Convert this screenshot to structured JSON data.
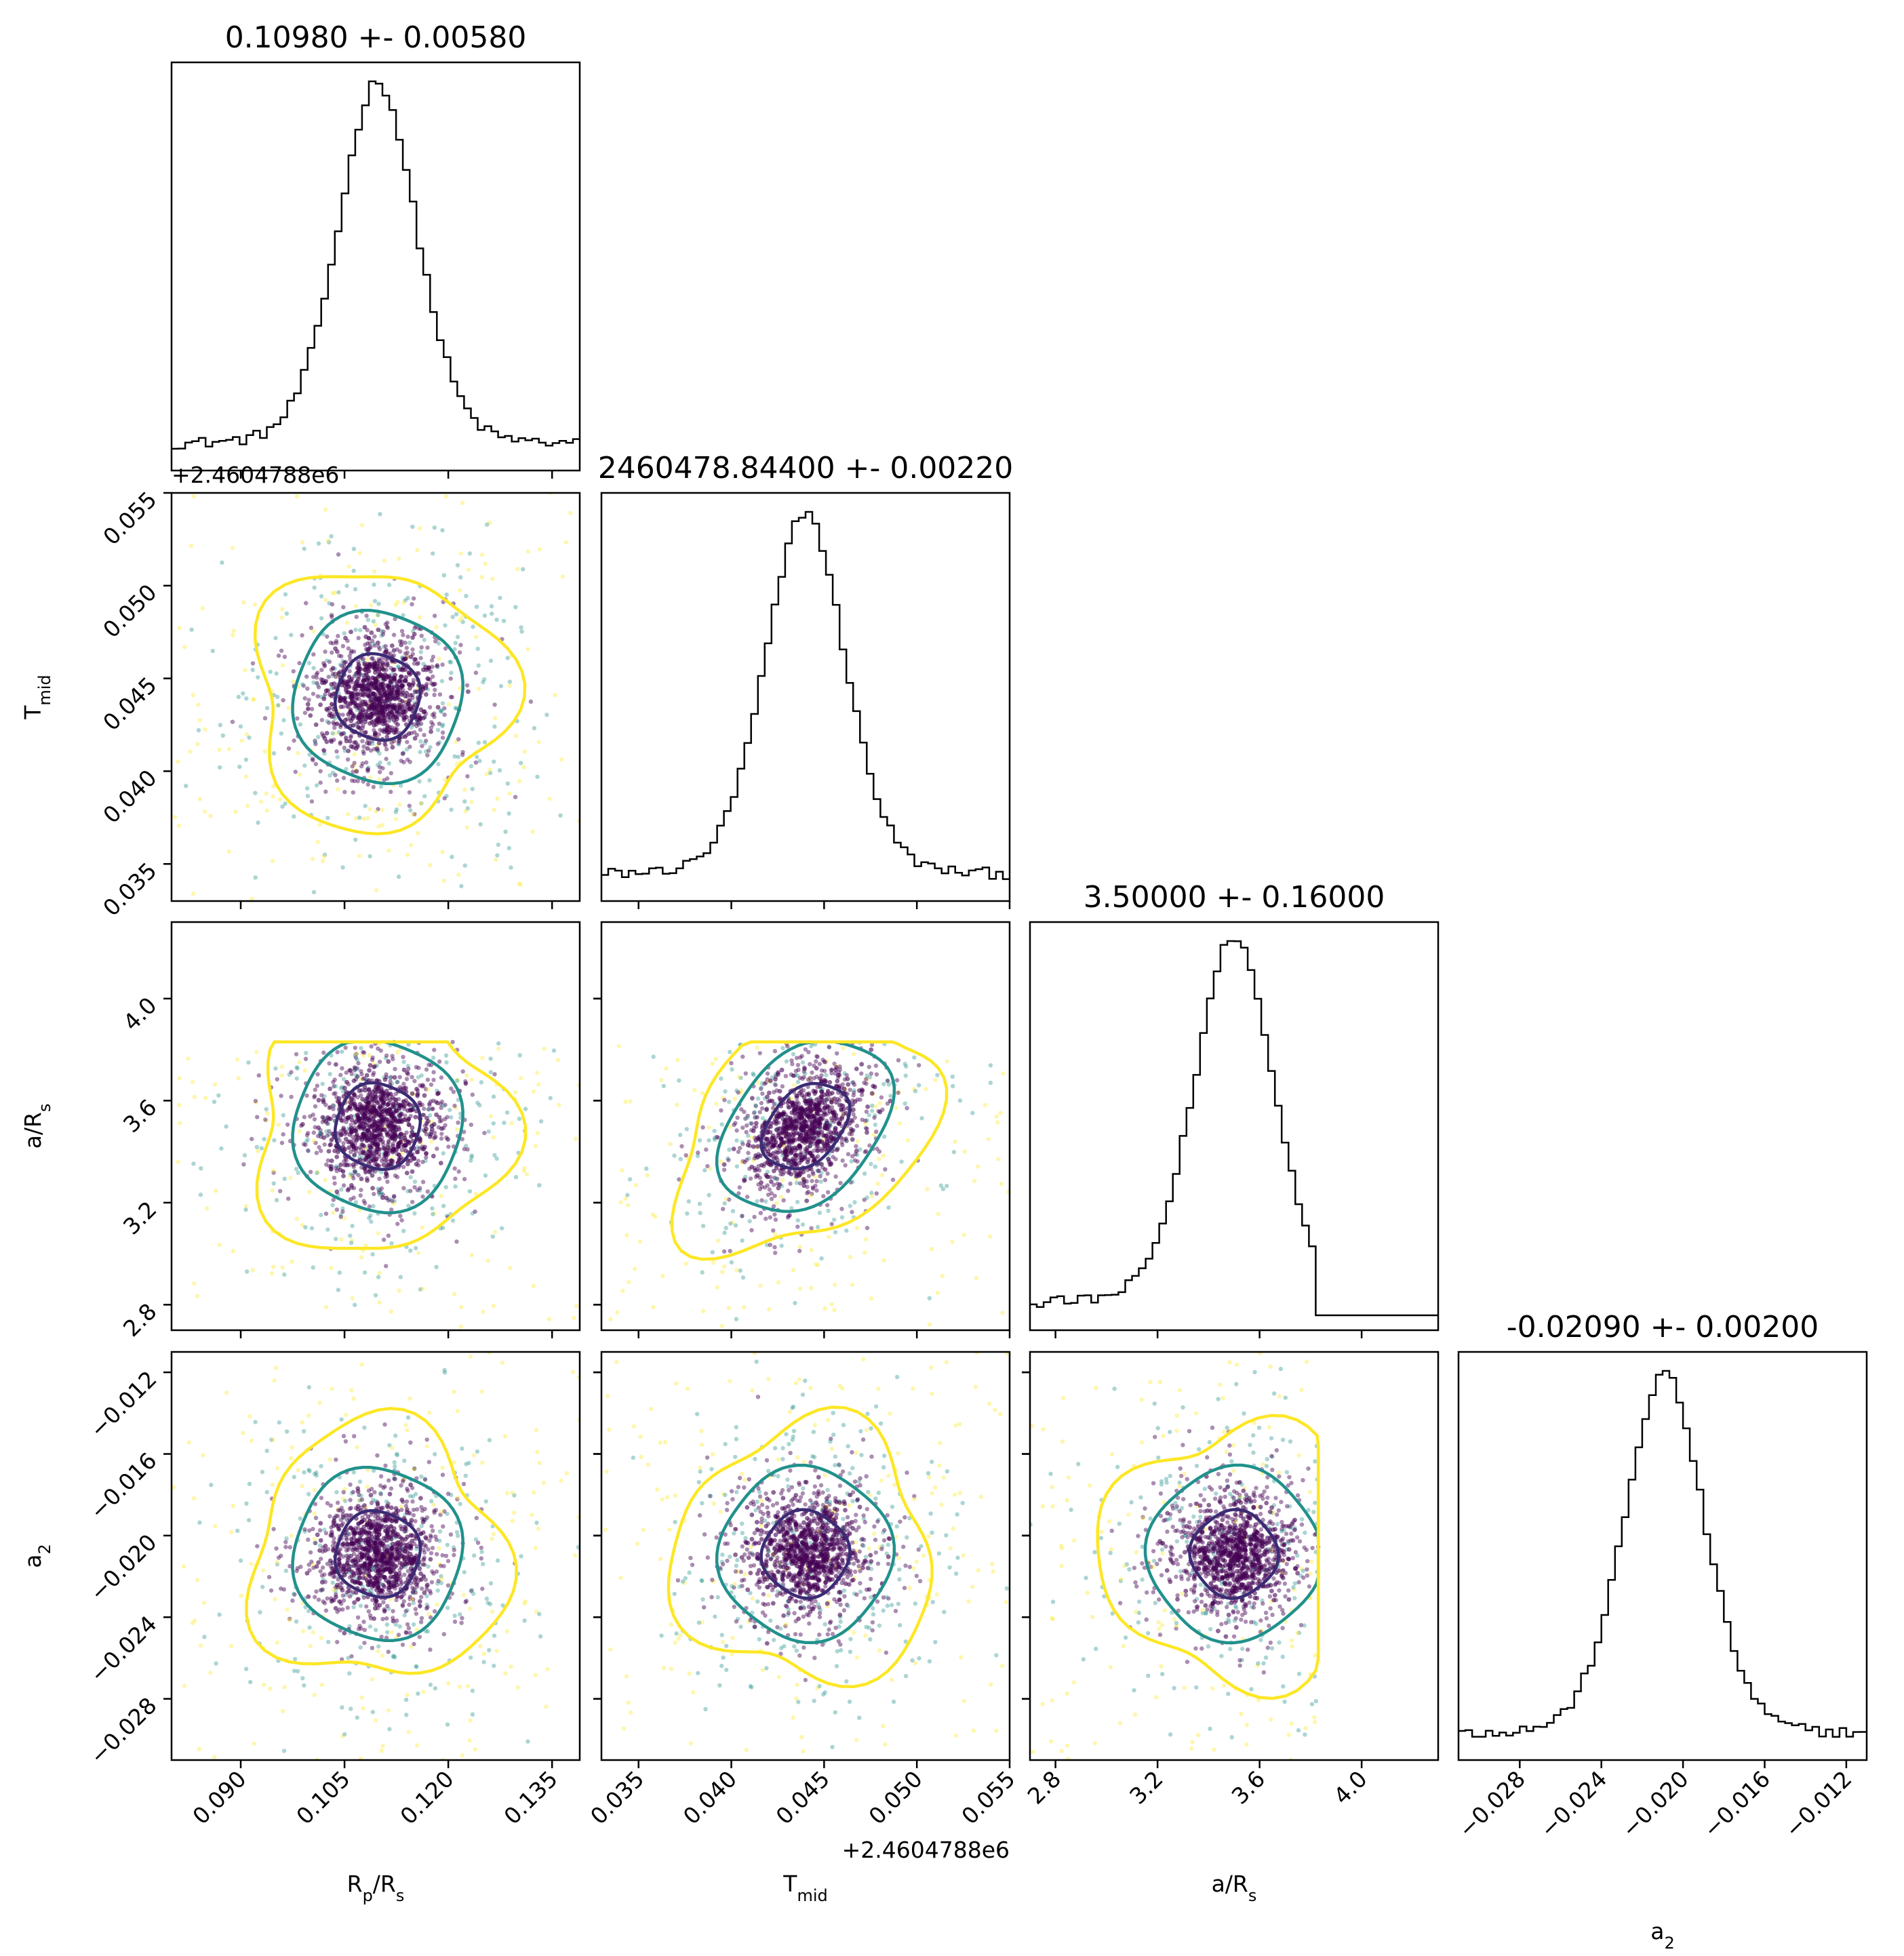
{
  "colors": {
    "histogram_line": "#000000",
    "contour_1sigma": "#3b2b74",
    "contour_2sigma": "#21918c",
    "contour_3sigma": "#fde725",
    "point_dark": "#440154",
    "point_mid": "#21918c",
    "point_light": "#fde725"
  },
  "chart_data": {
    "type": "corner",
    "parameters": [
      {
        "label": "R_p/R_s",
        "label_main": "R",
        "label_sub": "p",
        "label_tail": "/R",
        "label_tail_sub": "s",
        "title": "0.10980 +- 0.00580",
        "mean": 0.1098,
        "sigma": 0.0058,
        "range": [
          0.08,
          0.139
        ],
        "ticks": [
          "0.090",
          "0.105",
          "0.120",
          "0.135"
        ],
        "tick_values": [
          0.09,
          0.105,
          0.12,
          0.135
        ]
      },
      {
        "label": "T_mid",
        "label_main": "T",
        "label_sub": "mid",
        "label_tail": "",
        "label_tail_sub": "",
        "title": "2460478.84400 +- 0.00220",
        "mean": 0.044,
        "sigma": 0.0022,
        "range": [
          0.033,
          0.055
        ],
        "ticks": [
          "0.035",
          "0.040",
          "0.045",
          "0.050",
          "0.055"
        ],
        "tick_values": [
          0.035,
          0.04,
          0.045,
          0.05,
          0.055
        ],
        "offset": "+2.4604788e6"
      },
      {
        "label": "a/R_s",
        "label_main": "a/R",
        "label_sub": "s",
        "label_tail": "",
        "label_tail_sub": "",
        "title": "3.50000 +- 0.16000",
        "mean": 3.5,
        "sigma": 0.16,
        "range": [
          2.7,
          4.3
        ],
        "ticks": [
          "2.8",
          "3.2",
          "3.6",
          "4.0"
        ],
        "tick_values": [
          2.8,
          3.2,
          3.6,
          4.0
        ],
        "truncate_max": 3.83
      },
      {
        "label": "a_2",
        "label_main": "a",
        "label_sub": "2",
        "label_tail": "",
        "label_tail_sub": "",
        "title": "-0.02090 +- 0.00200",
        "mean": -0.0209,
        "sigma": 0.002,
        "range": [
          -0.031,
          -0.011
        ],
        "ticks": [
          "−0.028",
          "−0.024",
          "−0.020",
          "−0.016",
          "−0.012"
        ],
        "tick_values": [
          -0.028,
          -0.024,
          -0.02,
          -0.016,
          -0.012
        ]
      }
    ],
    "contour_levels_sigma": [
      1,
      2,
      3
    ],
    "grid": false,
    "legend": "none"
  }
}
